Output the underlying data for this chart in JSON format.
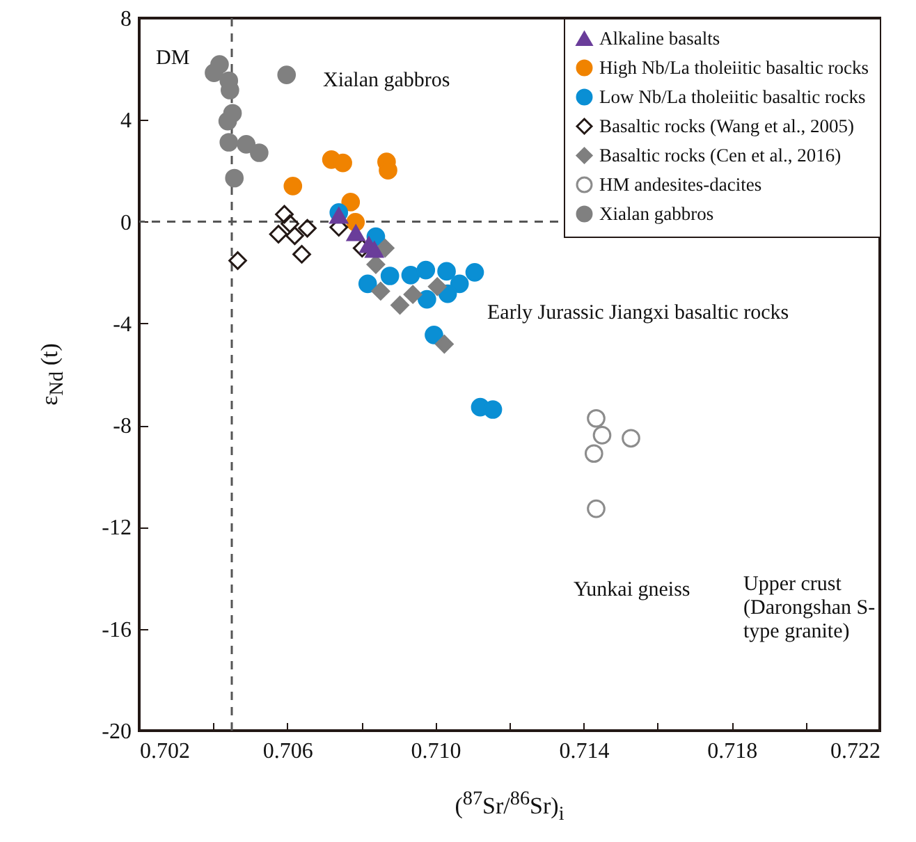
{
  "chart_data": {
    "type": "scatter",
    "xlabel": "($^{87}$Sr/$^{86}$Sr)$_{i}$",
    "ylabel": "ε$_{Nd}$ (t)",
    "xlim": [
      0.702,
      0.722
    ],
    "ylim": [
      -20,
      8
    ],
    "xticks": [
      0.702,
      {
        "value": 0.704,
        "label": null
      },
      0.706,
      {
        "value": 0.708,
        "label": null
      },
      {
        "value": 0.71,
        "label": "0.710"
      },
      {
        "value": 0.712,
        "label": null
      },
      0.714,
      {
        "value": 0.716,
        "label": null
      },
      0.718,
      {
        "value": 0.72,
        "label": null
      },
      0.722
    ],
    "yticks": [
      -20,
      -16,
      -12,
      -8,
      -4,
      0,
      4,
      8
    ],
    "grid": false,
    "legend": "top right",
    "series": [
      {
        "name": "Alkaline basalts",
        "color": "#6a3d9a",
        "marker": "triangle",
        "x": [
          0.70739,
          0.70785,
          0.7082,
          0.70835
        ],
        "values": [
          0.24,
          -0.44,
          -0.91,
          -1.1
        ]
      },
      {
        "name": "High Nb/La tholeiitic basaltic rocks",
        "color": "#f08300",
        "marker": "circle",
        "x": [
          0.70719,
          0.7075,
          0.70868,
          0.70872,
          0.70615,
          0.70771,
          0.70784
        ],
        "values": [
          2.44,
          2.31,
          2.35,
          2.02,
          1.4,
          0.77,
          -0.02
        ]
      },
      {
        "name": "Low Nb/La tholeiitic basaltic rocks",
        "color": "#0a8fd4",
        "marker": "circle",
        "x": [
          0.70739,
          0.70839,
          0.70817,
          0.70877,
          0.70933,
          0.70974,
          0.7103,
          0.71106,
          0.71065,
          0.71033,
          0.70977,
          0.70996,
          0.71121,
          0.71155
        ],
        "values": [
          0.36,
          -0.59,
          -2.44,
          -2.13,
          -2.1,
          -1.9,
          -1.95,
          -1.99,
          -2.44,
          -2.83,
          -3.05,
          -4.45,
          -7.29,
          -7.38
        ]
      },
      {
        "name": "Basaltic rocks (Wang et al., 2005)",
        "color": "#231815",
        "marker": "diamond",
        "x": [
          0.70592,
          0.70607,
          0.70576,
          0.7062,
          0.70654,
          0.70639,
          0.70466,
          0.70739,
          0.70802
        ],
        "values": [
          0.29,
          -0.08,
          -0.49,
          -0.55,
          -0.26,
          -1.28,
          -1.53,
          -0.22,
          -1.04
        ]
      },
      {
        "name": "Basaltic rocks (Cen et al., 2016)",
        "color": "#7f7f7f",
        "marker": "diamond",
        "x": [
          0.70864,
          0.70839,
          0.70852,
          0.70904,
          0.70939,
          0.71005,
          0.71024
        ],
        "values": [
          -1.04,
          -1.68,
          -2.73,
          -3.28,
          -2.86,
          -2.55,
          -4.81
        ]
      },
      {
        "name": "HM andesites-dacites",
        "color": "#8c8c8c",
        "marker": "circle",
        "x": [
          0.71434,
          0.7145,
          0.71528,
          0.71428,
          0.71434
        ],
        "values": [
          -7.73,
          -8.39,
          -8.51,
          -9.11,
          -11.28
        ]
      },
      {
        "name": "Xialan gabbros",
        "color": "#808080",
        "marker": "circle",
        "x": [
          0.70417,
          0.70402,
          0.70442,
          0.70445,
          0.70452,
          0.70439,
          0.70442,
          0.70489,
          0.70524,
          0.70457,
          0.70598
        ],
        "values": [
          6.18,
          5.85,
          5.54,
          5.17,
          4.26,
          3.95,
          3.12,
          3.04,
          2.71,
          1.71,
          5.77
        ]
      }
    ],
    "ref_lines": [
      {
        "axis": "x",
        "value": 0.7045,
        "color": "#555555",
        "line_style": "dashed"
      },
      {
        "axis": "y",
        "value": 0,
        "color": "#555555",
        "line_style": "dashed"
      }
    ],
    "annotations": [
      "DM",
      "Xialan gabbros",
      "Early Jurassic Jiangxi basaltic rocks",
      "Yunkai gneiss",
      "Upper crust (Darongshan S-type granite)"
    ]
  }
}
